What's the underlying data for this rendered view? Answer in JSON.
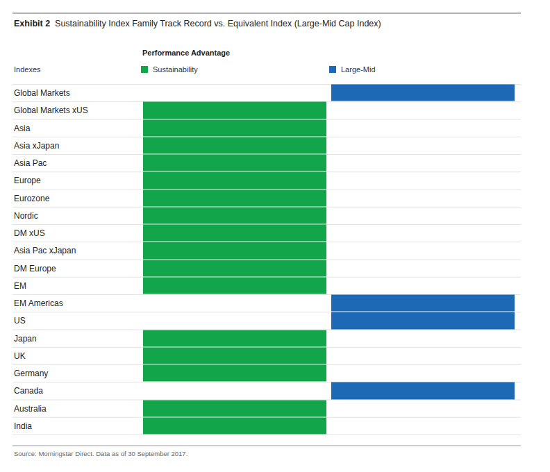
{
  "chart_data": {
    "type": "bar",
    "title": "Exhibit 2",
    "subtitle": "Sustainability Index Family Track Record vs. Equivalent Index (Large-Mid Cap Index)",
    "legend_title": "Performance Advantage",
    "category_label": "Indexes",
    "categories": [
      "Global Markets",
      "Global Markets xUS",
      "Asia",
      "Asia xJapan",
      "Asia Pac",
      "Europe",
      "Eurozone",
      "Nordic",
      "DM xUS",
      "Asia Pac xJapan",
      "DM Europe",
      "EM",
      "EM Americas",
      "US",
      "Japan",
      "UK",
      "Germany",
      "Canada",
      "Australia",
      "India"
    ],
    "series": [
      {
        "name": "Sustainability",
        "color": "#12a54a"
      },
      {
        "name": "Large-Mid",
        "color": "#1d69b6"
      }
    ],
    "advantage": [
      "Large-Mid",
      "Sustainability",
      "Sustainability",
      "Sustainability",
      "Sustainability",
      "Sustainability",
      "Sustainability",
      "Sustainability",
      "Sustainability",
      "Sustainability",
      "Sustainability",
      "Sustainability",
      "Large-Mid",
      "Large-Mid",
      "Sustainability",
      "Sustainability",
      "Sustainability",
      "Large-Mid",
      "Sustainability",
      "Sustainability"
    ],
    "source": "Source: Morningstar Direct. Data as of 30 September 2017."
  }
}
